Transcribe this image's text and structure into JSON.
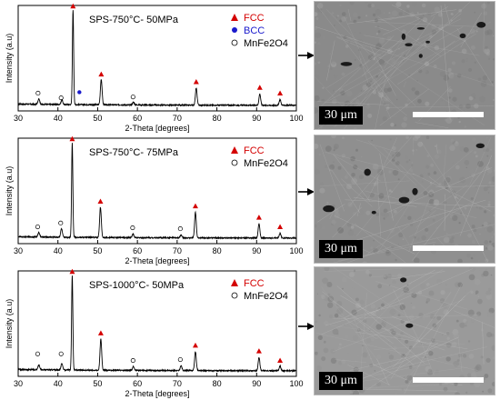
{
  "colors": {
    "fcc": "#d40000",
    "bcc": "#1a1acc",
    "line": "#000000"
  },
  "chart_data": [
    {
      "type": "line",
      "title": "SPS-750°C- 50MPa",
      "xlabel": "2-Theta [degrees]",
      "ylabel": "Intensity (a.u)",
      "xlim": [
        30,
        100
      ],
      "xticks": [
        "30",
        "40",
        "50",
        "60",
        "70",
        "80",
        "90",
        "100"
      ],
      "legend": [
        {
          "symbol": "triangle",
          "label": "FCC"
        },
        {
          "symbol": "dot",
          "label": "BCC"
        },
        {
          "symbol": "circle",
          "label": "MnFe2O4"
        }
      ],
      "peaks": [
        {
          "x": 35.2,
          "h": 0.06
        },
        {
          "x": 41.0,
          "h": 0.05
        },
        {
          "x": 43.8,
          "h": 1.0
        },
        {
          "x": 50.9,
          "h": 0.27
        },
        {
          "x": 59.0,
          "h": 0.03
        },
        {
          "x": 74.8,
          "h": 0.18
        },
        {
          "x": 90.8,
          "h": 0.12
        },
        {
          "x": 95.9,
          "h": 0.06
        }
      ],
      "markers": [
        {
          "x": 35.0,
          "y": 0.13,
          "type": "circle"
        },
        {
          "x": 40.8,
          "y": 0.08,
          "type": "circle"
        },
        {
          "x": 43.8,
          "y": 1.05,
          "type": "triangle"
        },
        {
          "x": 45.4,
          "y": 0.14,
          "type": "dot"
        },
        {
          "x": 50.9,
          "y": 0.33,
          "type": "triangle"
        },
        {
          "x": 58.9,
          "y": 0.09,
          "type": "circle"
        },
        {
          "x": 74.8,
          "y": 0.25,
          "type": "triangle"
        },
        {
          "x": 90.8,
          "y": 0.19,
          "type": "triangle"
        },
        {
          "x": 95.9,
          "y": 0.13,
          "type": "triangle"
        }
      ],
      "image_scale": "30 μm"
    },
    {
      "type": "line",
      "title": "SPS-750°C- 75MPa",
      "xlabel": "2-Theta [degrees]",
      "ylabel": "Intensity (a.u)",
      "xlim": [
        30,
        100
      ],
      "xticks": [
        "30",
        "40",
        "50",
        "60",
        "70",
        "80",
        "90",
        "100"
      ],
      "legend": [
        {
          "symbol": "triangle",
          "label": "FCC"
        },
        {
          "symbol": "circle",
          "label": "MnFe2O4"
        }
      ],
      "peaks": [
        {
          "x": 35.2,
          "h": 0.05
        },
        {
          "x": 40.9,
          "h": 0.09
        },
        {
          "x": 43.6,
          "h": 1.0
        },
        {
          "x": 50.7,
          "h": 0.32
        },
        {
          "x": 58.9,
          "h": 0.04
        },
        {
          "x": 71.0,
          "h": 0.03
        },
        {
          "x": 74.6,
          "h": 0.27
        },
        {
          "x": 90.6,
          "h": 0.15
        },
        {
          "x": 95.9,
          "h": 0.05
        }
      ],
      "markers": [
        {
          "x": 34.9,
          "y": 0.12,
          "type": "circle"
        },
        {
          "x": 40.7,
          "y": 0.16,
          "type": "circle"
        },
        {
          "x": 43.6,
          "y": 1.05,
          "type": "triangle"
        },
        {
          "x": 50.7,
          "y": 0.39,
          "type": "triangle"
        },
        {
          "x": 58.8,
          "y": 0.11,
          "type": "circle"
        },
        {
          "x": 70.8,
          "y": 0.1,
          "type": "circle"
        },
        {
          "x": 74.6,
          "y": 0.34,
          "type": "triangle"
        },
        {
          "x": 90.6,
          "y": 0.22,
          "type": "triangle"
        },
        {
          "x": 95.9,
          "y": 0.12,
          "type": "triangle"
        }
      ],
      "image_scale": "30 μm"
    },
    {
      "type": "line",
      "title": "SPS-1000°C- 50MPa",
      "xlabel": "2-Theta [degrees]",
      "ylabel": "Intensity (a.u)",
      "xlim": [
        30,
        100
      ],
      "xticks": [
        "30",
        "40",
        "50",
        "60",
        "70",
        "80",
        "90",
        "100"
      ],
      "legend": [
        {
          "symbol": "triangle",
          "label": "FCC"
        },
        {
          "symbol": "circle",
          "label": "MnFe2O4"
        }
      ],
      "peaks": [
        {
          "x": 35.2,
          "h": 0.05
        },
        {
          "x": 41.0,
          "h": 0.07
        },
        {
          "x": 43.6,
          "h": 1.0
        },
        {
          "x": 50.8,
          "h": 0.33
        },
        {
          "x": 59.0,
          "h": 0.04
        },
        {
          "x": 71.0,
          "h": 0.05
        },
        {
          "x": 74.6,
          "h": 0.2
        },
        {
          "x": 90.6,
          "h": 0.14
        },
        {
          "x": 95.9,
          "h": 0.05
        }
      ],
      "markers": [
        {
          "x": 34.9,
          "y": 0.18,
          "type": "circle"
        },
        {
          "x": 40.8,
          "y": 0.18,
          "type": "circle"
        },
        {
          "x": 43.6,
          "y": 1.05,
          "type": "triangle"
        },
        {
          "x": 50.8,
          "y": 0.4,
          "type": "triangle"
        },
        {
          "x": 58.9,
          "y": 0.11,
          "type": "circle"
        },
        {
          "x": 70.8,
          "y": 0.12,
          "type": "circle"
        },
        {
          "x": 74.6,
          "y": 0.27,
          "type": "triangle"
        },
        {
          "x": 90.6,
          "y": 0.21,
          "type": "triangle"
        },
        {
          "x": 95.9,
          "y": 0.11,
          "type": "triangle"
        }
      ],
      "image_scale": "30 μm"
    }
  ]
}
